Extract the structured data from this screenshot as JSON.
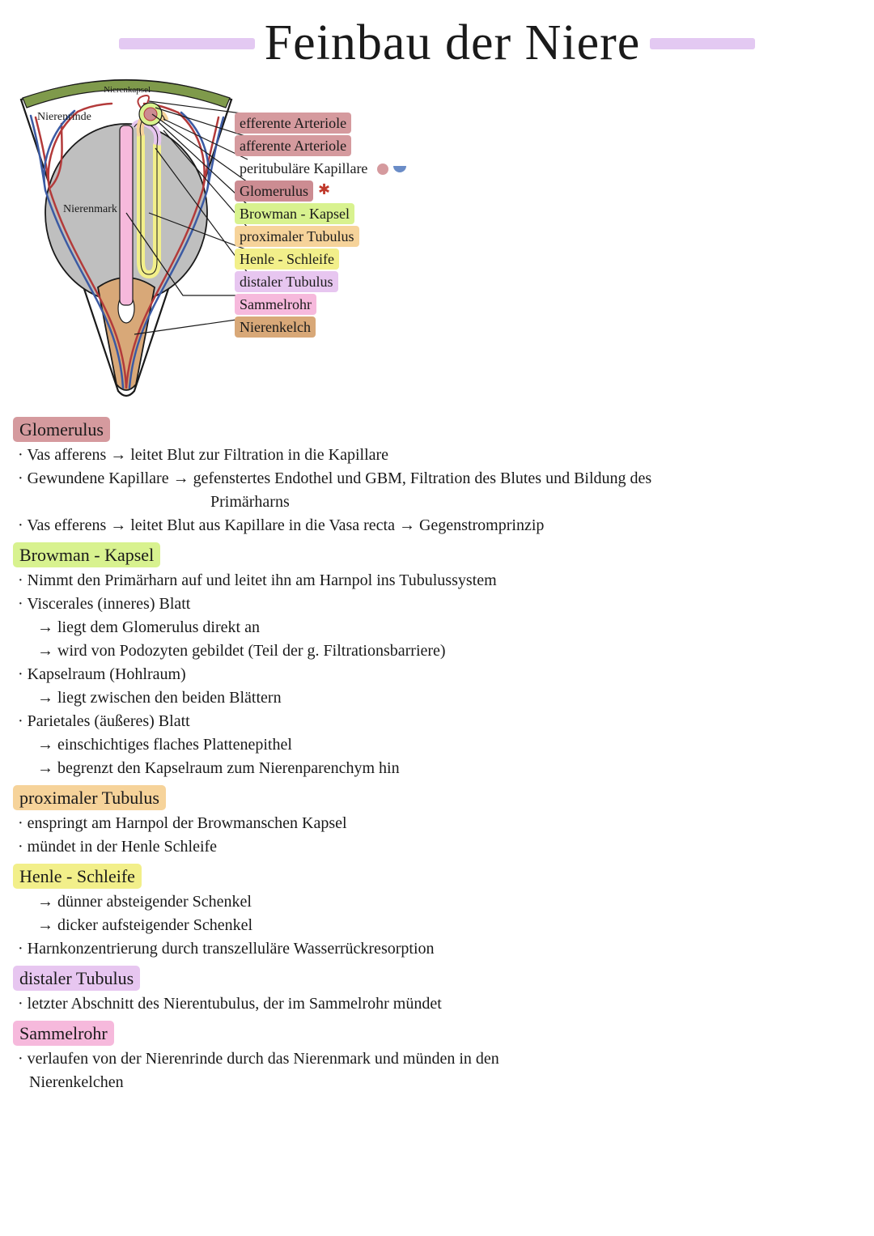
{
  "colors": {
    "lilac": "#e3c9f2",
    "rose": "#d59a9e",
    "rose_dark": "#cc8c92",
    "lightgreen": "#d8f28f",
    "peach": "#f6d39a",
    "yellow": "#f2ef8a",
    "lavender": "#e7c6f0",
    "pastel_pink": "#f6b9dc",
    "tan": "#d8a878",
    "blue": "#3b5aa3",
    "red": "#b33a3a",
    "grey": "#bfbfbf",
    "olive": "#7f9a4b",
    "black": "#1a1a1a",
    "white": "#ffffff"
  },
  "header": {
    "title": "Feinbau der Niere",
    "bar_color": "#e3c9f2",
    "bar_left_width": 168,
    "bar_right_width": 130
  },
  "diagram": {
    "capsule_label": "Nierenkapsel",
    "cortex_label": "Nierenrinde",
    "medulla_label": "Nierenmark"
  },
  "legend": [
    {
      "text": "efferente Arteriole",
      "bg": "#d59a9e"
    },
    {
      "text": "afferente Arteriole",
      "bg": "#d59a9e"
    },
    {
      "text": "peritubuläre Kapillare",
      "bg": null,
      "extra": "capillary"
    },
    {
      "text": "Glomerulus",
      "bg": "#cc8c92",
      "extra": "glom"
    },
    {
      "text": "Browman - Kapsel",
      "bg": "#d8f28f"
    },
    {
      "text": "proximaler Tubulus",
      "bg": "#f6d39a"
    },
    {
      "text": "Henle - Schleife",
      "bg": "#f2ef8a"
    },
    {
      "text": "distaler Tubulus",
      "bg": "#e7c6f0"
    },
    {
      "text": "Sammelrohr",
      "bg": "#f6b9dc"
    },
    {
      "text": "Nierenkelch",
      "bg": "#d8a878"
    }
  ],
  "sections": [
    {
      "title": "Glomerulus",
      "bg": "#d59a9e",
      "lines": [
        {
          "t": "bullet",
          "text": "Vas afferens → leitet Blut zur Filtration in die Kapillare"
        },
        {
          "t": "bullet",
          "text": "Gewundene Kapillare → gefenstertes Endothel und GBM, Filtration des Blutes und Bildung des"
        },
        {
          "t": "cont",
          "text": "Primärharns"
        },
        {
          "t": "bullet",
          "text": "Vas efferens → leitet Blut aus Kapillare in die Vasa recta → Gegenstromprinzip"
        }
      ]
    },
    {
      "title": "Browman - Kapsel",
      "bg": "#d8f28f",
      "lines": [
        {
          "t": "bullet",
          "text": "Nimmt den Primärharn auf und leitet ihn am Harnpol ins Tubulussystem"
        },
        {
          "t": "bullet",
          "text": "Viscerales (inneres) Blatt"
        },
        {
          "t": "sub",
          "text": "liegt dem Glomerulus direkt an"
        },
        {
          "t": "sub",
          "text": "wird von Podozyten gebildet (Teil der g. Filtrationsbarriere)"
        },
        {
          "t": "bullet",
          "text": "Kapselraum (Hohlraum)"
        },
        {
          "t": "sub",
          "text": "liegt zwischen den beiden Blättern"
        },
        {
          "t": "bullet",
          "text": "Parietales (äußeres) Blatt"
        },
        {
          "t": "sub",
          "text": "einschichtiges flaches Plattenepithel"
        },
        {
          "t": "sub",
          "text": "begrenzt den Kapselraum zum Nierenparenchym hin"
        }
      ]
    },
    {
      "title": "proximaler Tubulus",
      "bg": "#f6d39a",
      "lines": [
        {
          "t": "bullet",
          "text": "enspringt am Harnpol der Browmanschen Kapsel"
        },
        {
          "t": "bullet",
          "text": "mündet in der Henle Schleife"
        }
      ]
    },
    {
      "title": "Henle - Schleife",
      "bg": "#f2ef8a",
      "lines": [
        {
          "t": "sub",
          "text": "dünner absteigender Schenkel"
        },
        {
          "t": "sub",
          "text": "dicker aufsteigender Schenkel"
        },
        {
          "t": "bullet",
          "text": "Harnkonzentrierung durch transzelluläre Wasserrückresorption"
        }
      ]
    },
    {
      "title": "distaler Tubulus",
      "bg": "#e7c6f0",
      "lines": [
        {
          "t": "bullet",
          "text": "letzter Abschnitt des Nierentubulus, der im Sammelrohr mündet"
        }
      ]
    },
    {
      "title": "Sammelrohr",
      "bg": "#f6b9dc",
      "lines": [
        {
          "t": "bullet",
          "text": "verlaufen von der Nierenrinde durch das Nierenmark und münden in den"
        },
        {
          "t": "plain",
          "text": "Nierenkelchen"
        }
      ]
    }
  ]
}
